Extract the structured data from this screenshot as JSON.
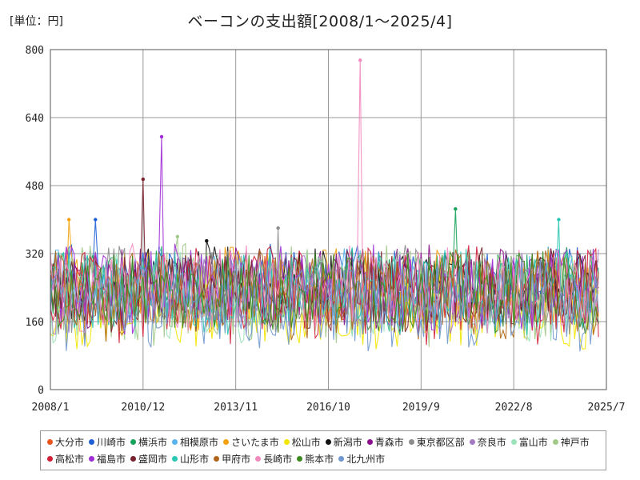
{
  "chart_data": {
    "type": "line",
    "title": "ベーコンの支出額[2008/1～2025/4]",
    "unit_label": "[単位：円]",
    "xlabel": "",
    "ylabel": "",
    "ylim": [
      0,
      800
    ],
    "yticks": [
      0,
      160,
      320,
      480,
      640,
      800
    ],
    "x_range": [
      "2008/1",
      "2025/7"
    ],
    "xticks": [
      "2008/1",
      "2010/12",
      "2013/11",
      "2016/10",
      "2019/9",
      "2022/8",
      "2025/7"
    ],
    "grid": true,
    "legend_position": "bottom",
    "series": [
      {
        "name": "大分市",
        "color": "#e8541c",
        "min": 140,
        "max": 320,
        "peak": null
      },
      {
        "name": "川崎市",
        "color": "#1f5fd6",
        "min": 150,
        "max": 400,
        "peak": {
          "x": "2009/6",
          "y": 400
        }
      },
      {
        "name": "横浜市",
        "color": "#17a35a",
        "min": 150,
        "max": 420,
        "peak": {
          "x": "2020/10",
          "y": 425
        }
      },
      {
        "name": "相模原市",
        "color": "#59b3ec",
        "min": 140,
        "max": 340,
        "peak": null
      },
      {
        "name": "さいたま市",
        "color": "#f5a20f",
        "min": 130,
        "max": 400,
        "peak": {
          "x": "2008/8",
          "y": 400
        }
      },
      {
        "name": "松山市",
        "color": "#f2e600",
        "min": 95,
        "max": 280,
        "peak": null
      },
      {
        "name": "新潟市",
        "color": "#111111",
        "min": 160,
        "max": 350,
        "peak": {
          "x": "2012/12",
          "y": 350
        }
      },
      {
        "name": "青森市",
        "color": "#8a0f8a",
        "min": 140,
        "max": 355,
        "peak": null
      },
      {
        "name": "東京都区部",
        "color": "#8c8c8c",
        "min": 130,
        "max": 380,
        "peak": {
          "x": "2015/3",
          "y": 380
        }
      },
      {
        "name": "奈良市",
        "color": "#a67ac2",
        "min": 130,
        "max": 330,
        "peak": null
      },
      {
        "name": "富山市",
        "color": "#9be3b8",
        "min": 110,
        "max": 330,
        "peak": null
      },
      {
        "name": "神戸市",
        "color": "#a3c98a",
        "min": 100,
        "max": 360,
        "peak": {
          "x": "2012/1",
          "y": 360
        }
      },
      {
        "name": "高松市",
        "color": "#d11f37",
        "min": 105,
        "max": 340,
        "peak": null
      },
      {
        "name": "福島市",
        "color": "#a02ed6",
        "min": 130,
        "max": 590,
        "peak": {
          "x": "2011/7",
          "y": 595
        }
      },
      {
        "name": "盛岡市",
        "color": "#7a2330",
        "min": 130,
        "max": 495,
        "peak": {
          "x": "2010/12",
          "y": 495
        }
      },
      {
        "name": "山形市",
        "color": "#2ac7b2",
        "min": 120,
        "max": 400,
        "peak": {
          "x": "2024/1",
          "y": 400
        }
      },
      {
        "name": "甲府市",
        "color": "#b0661a",
        "min": 110,
        "max": 330,
        "peak": null
      },
      {
        "name": "長崎市",
        "color": "#f28ac0",
        "min": 130,
        "max": 775,
        "peak": {
          "x": "2017/10",
          "y": 775
        }
      },
      {
        "name": "熊本市",
        "color": "#3c8a1f",
        "min": 130,
        "max": 330,
        "peak": null
      },
      {
        "name": "北九州市",
        "color": "#6f98cf",
        "min": 90,
        "max": 310,
        "peak": null
      }
    ]
  }
}
